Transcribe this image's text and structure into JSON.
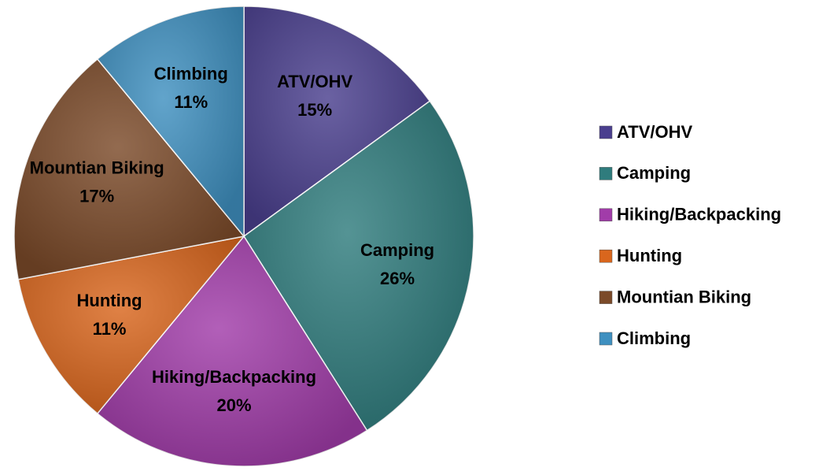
{
  "chart_data": {
    "type": "pie",
    "categories": [
      "ATV/OHV",
      "Camping",
      "Hiking/Backpacking",
      "Hunting",
      "Mountian Biking",
      "Climbing"
    ],
    "values": [
      15,
      26,
      20,
      11,
      17,
      11
    ],
    "value_labels": [
      "15%",
      "26%",
      "20%",
      "11%",
      "17%",
      "11%"
    ],
    "colors": [
      "#4a3f8e",
      "#2f7c7d",
      "#a13ca9",
      "#d9661d",
      "#7b4a29",
      "#3f90c0"
    ],
    "legend": "right"
  }
}
